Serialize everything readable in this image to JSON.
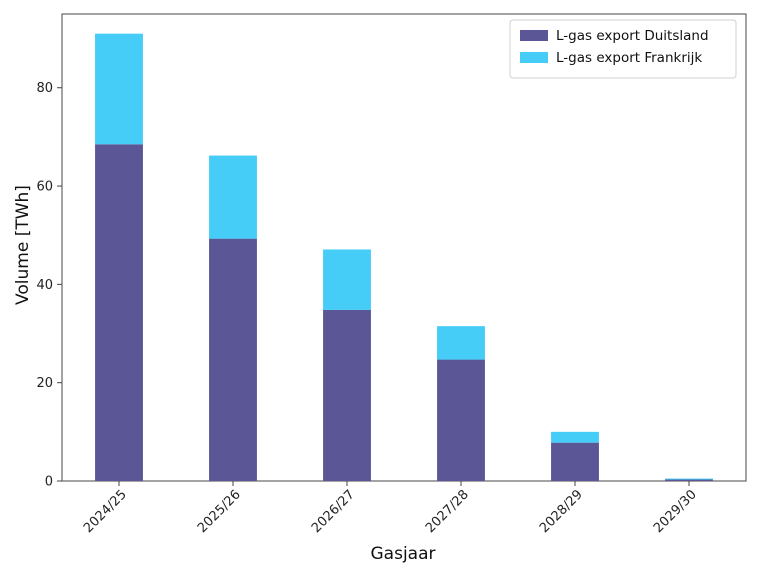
{
  "chart_data": {
    "type": "bar",
    "stacked": true,
    "categories": [
      "2024/25",
      "2025/26",
      "2026/27",
      "2027/28",
      "2028/29",
      "2029/30"
    ],
    "series": [
      {
        "name": "L-gas export Duitsland",
        "values": [
          68.5,
          49.3,
          34.8,
          24.7,
          7.8,
          0.3
        ],
        "color": "#5b5797"
      },
      {
        "name": "L-gas export Frankrijk",
        "values": [
          22.5,
          16.9,
          12.3,
          6.8,
          2.2,
          0.2
        ],
        "color": "#45ccf7"
      }
    ],
    "title": "",
    "xlabel": "Gasjaar",
    "ylabel": "Volume [TWh]",
    "ylim": [
      0,
      95
    ],
    "yticks": [
      0,
      20,
      40,
      60,
      80
    ],
    "grid": false,
    "legend_position": "top-right"
  }
}
